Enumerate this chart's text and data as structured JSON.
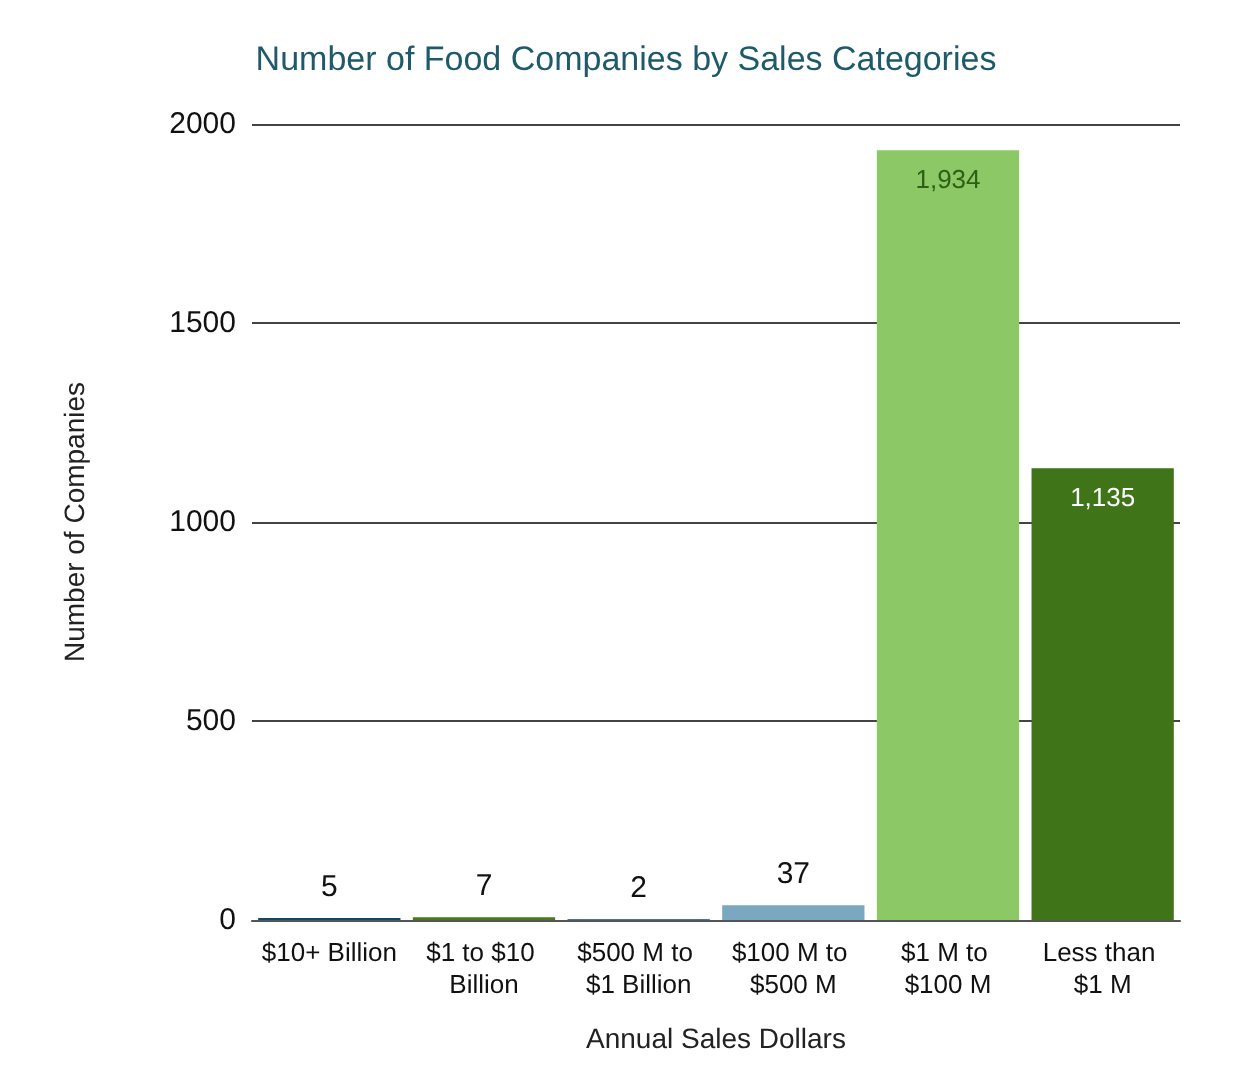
{
  "chart_data": {
    "type": "bar",
    "title": "Number of Food Companies by Sales Categories",
    "xlabel": "Annual Sales Dollars",
    "ylabel": "Number of Companies",
    "categories": [
      "$10+ Billion",
      "$1 to $10 Billion",
      "$500 M to $1 Billion",
      "$100 M to $500 M",
      "$1 M to $100 M",
      "Less than $1 M"
    ],
    "values": [
      5,
      7,
      2,
      37,
      1934,
      1135
    ],
    "colors": [
      "#0d4a6b",
      "#4a7a1f",
      "#0d4a6b",
      "#7ba7c0",
      "#8cc866",
      "#3f7418"
    ],
    "value_labels": [
      "5",
      "7",
      "2",
      "37",
      "1,934",
      "1,135"
    ],
    "ylim": [
      0,
      2000
    ],
    "yticks": [
      0,
      500,
      1000,
      1500,
      2000
    ],
    "grid": "y"
  }
}
